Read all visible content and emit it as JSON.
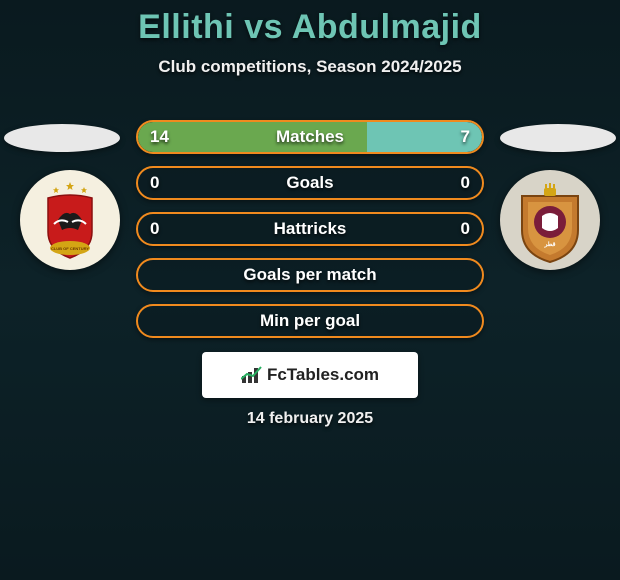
{
  "header": {
    "player1": "Ellithi",
    "vs": "vs",
    "player2": "Abdulmajid",
    "subtitle": "Club competitions, Season 2024/2025"
  },
  "colors": {
    "accent_border": "#f08a1e",
    "fill_left": "#6aa84f",
    "fill_right": "#6ec5b4",
    "title_color": "#6ec5b4",
    "background_top": "#0a1a1f",
    "background_mid": "#0d2228"
  },
  "stats": [
    {
      "label": "Matches",
      "left_value": "14",
      "right_value": "7",
      "left_pct": 66.7,
      "right_pct": 33.3,
      "show_values": true
    },
    {
      "label": "Goals",
      "left_value": "0",
      "right_value": "0",
      "left_pct": 0,
      "right_pct": 0,
      "show_values": true
    },
    {
      "label": "Hattricks",
      "left_value": "0",
      "right_value": "0",
      "left_pct": 0,
      "right_pct": 0,
      "show_values": true
    },
    {
      "label": "Goals per match",
      "left_value": "",
      "right_value": "",
      "left_pct": 0,
      "right_pct": 0,
      "show_values": false
    },
    {
      "label": "Min per goal",
      "left_value": "",
      "right_value": "",
      "left_pct": 0,
      "right_pct": 0,
      "show_values": false
    }
  ],
  "branding": {
    "text": "FcTables.com"
  },
  "date": "14 february 2025",
  "clubs": {
    "left": {
      "name": "al-ahly",
      "bg": "#f5f0e0",
      "primary": "#c81b1b",
      "accent": "#1a1a1a"
    },
    "right": {
      "name": "qatar-sc",
      "bg": "#d8d4c8",
      "primary": "#c47a2e",
      "accent": "#7a1d3a"
    }
  }
}
